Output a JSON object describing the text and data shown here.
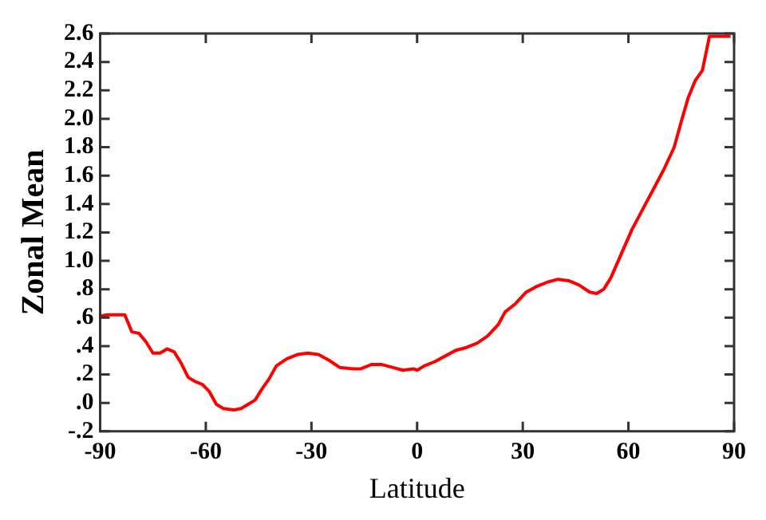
{
  "chart_data": {
    "type": "line",
    "xlabel": "Latitude",
    "ylabel": "Zonal Mean",
    "grid": false,
    "legend": false,
    "marker": "none",
    "line_style": "solid",
    "x": [
      -90,
      -88,
      -83,
      -81,
      -79,
      -77,
      -75,
      -73,
      -71,
      -69,
      -67,
      -65,
      -63,
      -61,
      -59,
      -57,
      -55,
      -52,
      -50,
      -48,
      -46,
      -44,
      -42,
      -40,
      -37,
      -34,
      -31,
      -28,
      -25,
      -22,
      -18,
      -16,
      -13,
      -10,
      -7,
      -4,
      -1,
      0,
      2,
      5,
      8,
      11,
      14,
      17,
      20,
      23,
      25,
      28,
      31,
      34,
      37,
      40,
      43,
      46,
      49,
      51,
      53,
      55,
      58,
      61,
      64,
      67,
      70,
      73,
      75,
      77,
      79,
      81,
      83,
      85,
      89
    ],
    "series": [
      {
        "color": "#ff0000",
        "values": [
          0.61,
          0.62,
          0.62,
          0.5,
          0.49,
          0.43,
          0.35,
          0.35,
          0.38,
          0.36,
          0.28,
          0.18,
          0.15,
          0.13,
          0.08,
          -0.01,
          -0.04,
          -0.05,
          -0.04,
          -0.01,
          0.02,
          0.1,
          0.17,
          0.26,
          0.31,
          0.34,
          0.35,
          0.34,
          0.3,
          0.25,
          0.24,
          0.24,
          0.27,
          0.27,
          0.25,
          0.23,
          0.24,
          0.23,
          0.26,
          0.29,
          0.33,
          0.37,
          0.39,
          0.42,
          0.47,
          0.55,
          0.64,
          0.7,
          0.78,
          0.82,
          0.85,
          0.87,
          0.86,
          0.83,
          0.78,
          0.77,
          0.8,
          0.88,
          1.05,
          1.22,
          1.36,
          1.5,
          1.64,
          1.8,
          1.98,
          2.15,
          2.27,
          2.34,
          2.58,
          2.58,
          2.58
        ]
      }
    ],
    "xlim": [
      -90,
      90
    ],
    "xticks": [
      -90,
      -60,
      -30,
      0,
      30,
      60,
      90
    ],
    "ylim": [
      -0.2,
      2.6
    ],
    "yticks": [
      {
        "value": -0.2,
        "label": "-.2"
      },
      {
        "value": 0,
        "label": ".0"
      },
      {
        "value": 0.2,
        "label": ".2"
      },
      {
        "value": 0.4,
        "label": ".4"
      },
      {
        "value": 0.6,
        "label": ".6"
      },
      {
        "value": 0.8,
        "label": ".8"
      },
      {
        "value": 1,
        "label": "1.0"
      },
      {
        "value": 1.2,
        "label": "1.2"
      },
      {
        "value": 1.4,
        "label": "1.4"
      },
      {
        "value": 1.6,
        "label": "1.6"
      },
      {
        "value": 1.8,
        "label": "1.8"
      },
      {
        "value": 2,
        "label": "2.0"
      },
      {
        "value": 2.2,
        "label": "2.2"
      },
      {
        "value": 2.4,
        "label": "2.4"
      },
      {
        "value": 2.6,
        "label": "2.6"
      }
    ]
  }
}
